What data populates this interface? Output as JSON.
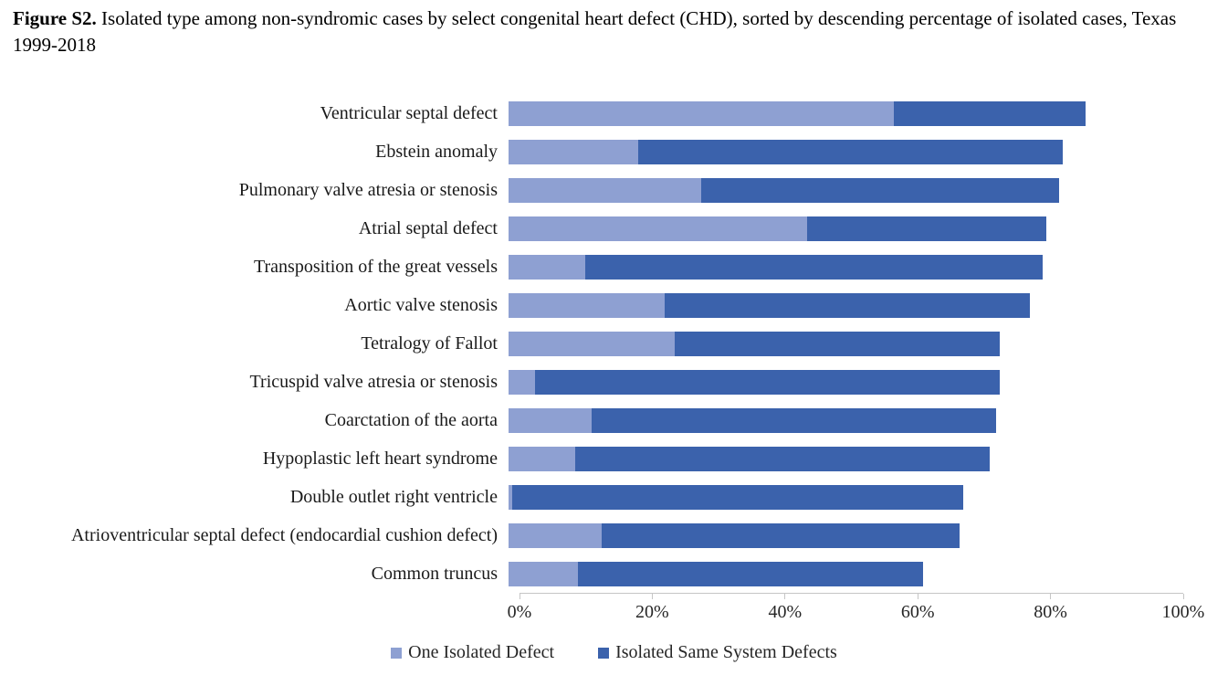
{
  "title": {
    "label": "Figure S2.",
    "description": " Isolated type among non-syndromic cases by select congenital heart defect (CHD), sorted by descending percentage of isolated cases, Texas 1999-2018"
  },
  "chart_data": {
    "type": "bar",
    "orientation": "horizontal",
    "stacked": true,
    "grid": false,
    "legend_position": "bottom",
    "categories": [
      "Ventricular septal defect",
      "Ebstein anomaly",
      "Pulmonary valve atresia or stenosis",
      "Atrial septal defect",
      "Transposition of the great vessels",
      "Aortic valve stenosis",
      "Tetralogy of Fallot",
      "Tricuspid valve atresia or stenosis",
      "Coarctation of the aorta",
      "Hypoplastic left heart syndrome",
      "Double outlet right ventricle",
      "Atrioventricular septal defect (endocardial cushion defect)",
      "Common truncus"
    ],
    "series": [
      {
        "name": "One Isolated Defect",
        "color": "#8EA0D2",
        "values": [
          58,
          19.5,
          29,
          45,
          11.5,
          23.5,
          25,
          4,
          12.5,
          10,
          0.5,
          14,
          10.5
        ]
      },
      {
        "name": "Isolated Same System Defects",
        "color": "#3B62AC",
        "values": [
          29,
          64,
          54,
          36,
          69,
          55,
          49,
          70,
          61,
          62.5,
          68,
          54,
          52
        ]
      }
    ],
    "totals_percent": [
      87,
      83.5,
      83,
      81,
      80.5,
      78.5,
      74,
      74,
      73.5,
      72.5,
      68.5,
      68,
      62.5
    ],
    "x_axis": {
      "min": 0,
      "max": 100,
      "tick_step": 20,
      "tick_labels": [
        "0%",
        "20%",
        "40%",
        "60%",
        "80%",
        "100%"
      ]
    }
  }
}
